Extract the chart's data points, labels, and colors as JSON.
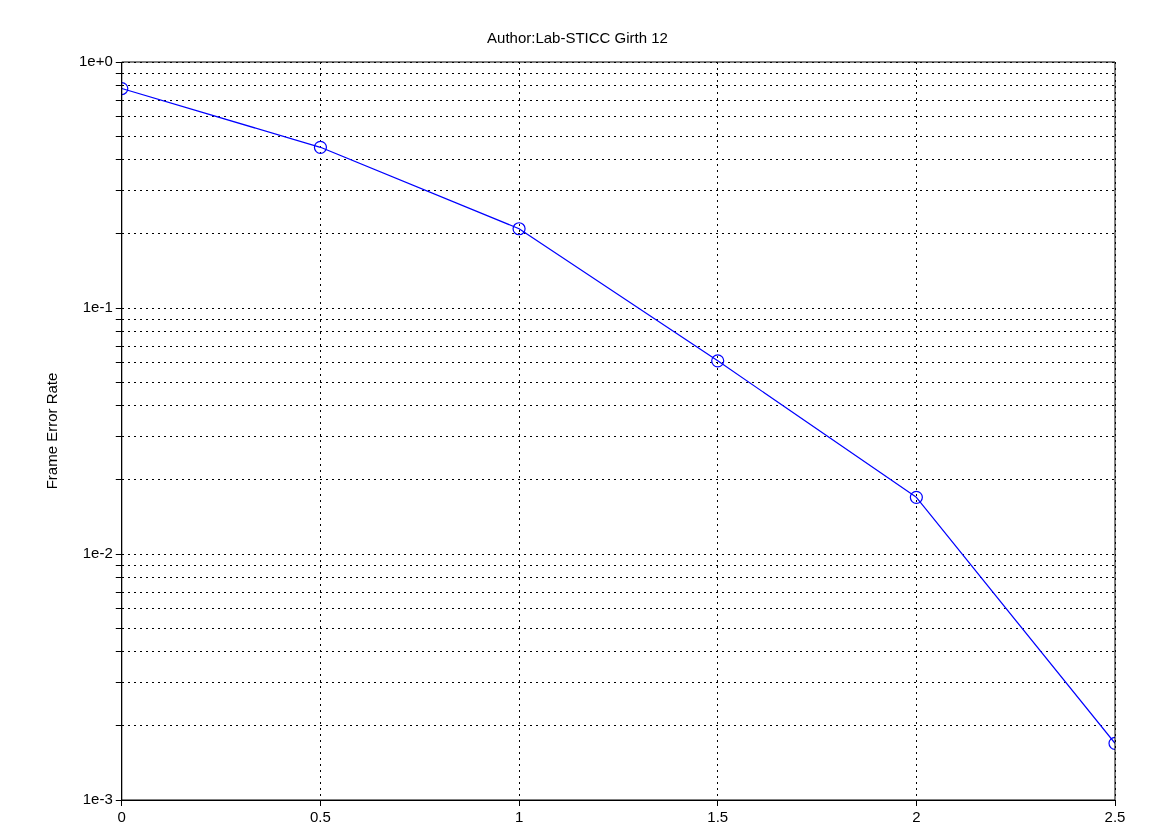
{
  "chart_data": {
    "type": "line",
    "title": "Author:Lab-STICC Girth 12",
    "ylabel": "Frame Error Rate",
    "x": [
      0,
      0.5,
      1,
      1.5,
      2,
      2.5
    ],
    "series": [
      {
        "color": "#0000ff",
        "values": [
          0.78,
          0.45,
          0.21,
          0.061,
          0.017,
          0.0017
        ]
      }
    ],
    "xlim": [
      0,
      2.5
    ],
    "xticks": [
      0,
      0.5,
      1,
      1.5,
      2,
      2.5
    ],
    "ylim": [
      0.001,
      1
    ],
    "yticks": [
      {
        "value": 0.001,
        "label": "1e-3"
      },
      {
        "value": 0.002,
        "label": null
      },
      {
        "value": 0.003,
        "label": null
      },
      {
        "value": 0.004,
        "label": null
      },
      {
        "value": 0.005,
        "label": null
      },
      {
        "value": 0.006,
        "label": null
      },
      {
        "value": 0.007,
        "label": null
      },
      {
        "value": 0.008,
        "label": null
      },
      {
        "value": 0.009,
        "label": null
      },
      {
        "value": 0.01,
        "label": "1e-2"
      },
      {
        "value": 0.02,
        "label": null
      },
      {
        "value": 0.03,
        "label": null
      },
      {
        "value": 0.04,
        "label": null
      },
      {
        "value": 0.05,
        "label": null
      },
      {
        "value": 0.06,
        "label": null
      },
      {
        "value": 0.07,
        "label": null
      },
      {
        "value": 0.08,
        "label": null
      },
      {
        "value": 0.09,
        "label": null
      },
      {
        "value": 0.1,
        "label": "1e-1"
      },
      {
        "value": 0.2,
        "label": null
      },
      {
        "value": 0.3,
        "label": null
      },
      {
        "value": 0.4,
        "label": null
      },
      {
        "value": 0.5,
        "label": null
      },
      {
        "value": 0.6,
        "label": null
      },
      {
        "value": 0.7,
        "label": null
      },
      {
        "value": 0.8,
        "label": null
      },
      {
        "value": 0.9,
        "label": null
      },
      {
        "value": 1,
        "label": "1e+0"
      }
    ],
    "log": "y",
    "grid": true,
    "legend": false,
    "marker": "circle",
    "line_style": "solid"
  }
}
